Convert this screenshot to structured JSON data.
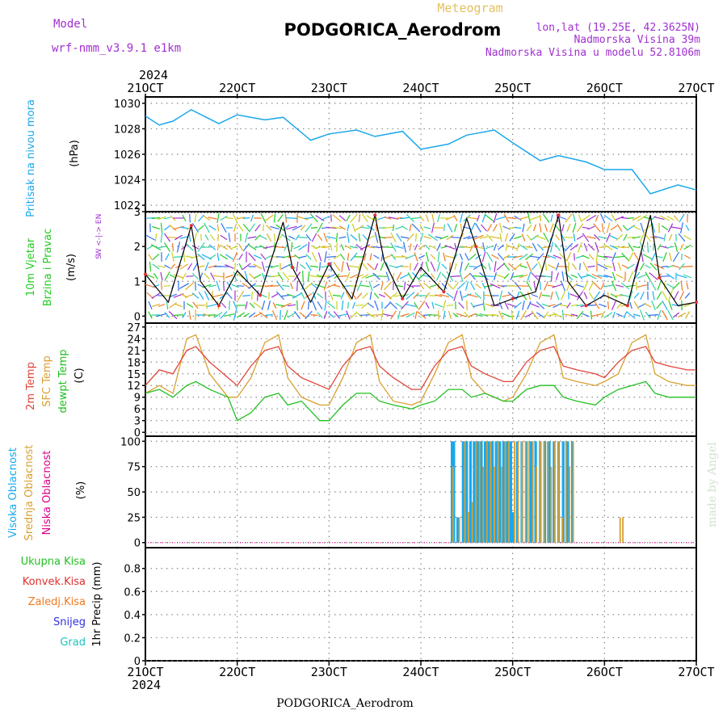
{
  "header": {
    "model_label": "Model",
    "model_name": "wrf-nmm_v3.9.1 e1km",
    "title": "PODGORICA_Aerodrom",
    "meteogram": "Meteogram",
    "lonlat": "lon,lat (19.25E, 42.3625N)",
    "elevation": "Nadmorska Visina 39m",
    "model_elevation": "Nadmorska Visina u modelu 52.8106m",
    "watermark": "made by Angel",
    "footer_title": "PODGORICA_Aerodrom"
  },
  "time_axis": {
    "year": "2024",
    "labels": [
      "21OCT",
      "22OCT",
      "23OCT",
      "24OCT",
      "25OCT",
      "26OCT",
      "27OCT"
    ]
  },
  "colors": {
    "pressure": "#1aa7ec",
    "wind_label": "#22cc22",
    "wind_dir_label": "#a030d0",
    "temp2m": "#e0443a",
    "sfc_temp": "#d9a030",
    "dewpoint": "#22c022",
    "cloud_high": "#1aa7ec",
    "cloud_mid": "#d9a030",
    "cloud_low": "#e0008a",
    "precip_total": "#22c022",
    "precip_conv": "#e03030",
    "precip_frozen": "#f07820",
    "precip_snow": "#3030e0",
    "precip_hail": "#20c0c0"
  },
  "chart_data": [
    {
      "type": "line",
      "panel": "pressure",
      "ylabel": [
        "Pritisak na nivou mora",
        "(hPa)"
      ],
      "ylim": [
        1021.5,
        1030.5
      ],
      "yticks": [
        1022,
        1024,
        1026,
        1028,
        1030
      ],
      "x": [
        0,
        0.15,
        0.3,
        0.5,
        0.8,
        1.0,
        1.3,
        1.5,
        1.8,
        2.0,
        2.3,
        2.5,
        2.8,
        3.0,
        3.3,
        3.5,
        3.8,
        4.0,
        4.3,
        4.5,
        4.8,
        5.0,
        5.3,
        5.5,
        5.8,
        6.0
      ],
      "series": [
        {
          "values": [
            1029.0,
            1028.3,
            1028.6,
            1029.5,
            1028.4,
            1029.1,
            1028.7,
            1028.9,
            1027.1,
            1027.6,
            1027.9,
            1027.4,
            1027.8,
            1026.4,
            1026.8,
            1027.5,
            1027.9,
            1026.9,
            1025.5,
            1025.9,
            1025.4,
            1024.8,
            1024.8,
            1022.9,
            1023.6,
            1023.2
          ]
        }
      ]
    },
    {
      "type": "line",
      "panel": "wind",
      "ylabel": [
        "10m Vjetar",
        "Brzina i Pravac",
        "(m/s)"
      ],
      "dir_legend": [
        "N",
        "W <-|-> E",
        "S"
      ],
      "ylim": [
        -0.2,
        3.0
      ],
      "yticks": [
        0,
        1,
        2,
        3
      ],
      "x": [
        0,
        0.25,
        0.5,
        0.6,
        0.8,
        1.0,
        1.25,
        1.5,
        1.6,
        1.8,
        2.0,
        2.25,
        2.5,
        2.6,
        2.8,
        3.0,
        3.25,
        3.5,
        3.6,
        3.8,
        4.0,
        4.25,
        4.5,
        4.6,
        4.8,
        5.0,
        5.25,
        5.5,
        5.6,
        5.8,
        6.0
      ],
      "series": [
        {
          "name": "speed",
          "values": [
            1.2,
            0.4,
            2.6,
            1.0,
            0.3,
            1.3,
            0.6,
            2.7,
            1.4,
            0.4,
            1.5,
            0.5,
            2.9,
            1.6,
            0.5,
            1.4,
            0.7,
            2.8,
            2.0,
            0.3,
            0.5,
            0.7,
            2.9,
            1.0,
            0.3,
            0.6,
            0.3,
            2.9,
            1.1,
            0.3,
            0.4
          ]
        }
      ]
    },
    {
      "type": "line",
      "panel": "temperature",
      "ylabel": [
        "2m Temp",
        "SFC Temp",
        "dewpt Temp",
        "(C)"
      ],
      "ylim": [
        -1,
        28
      ],
      "yticks": [
        0,
        3,
        6,
        9,
        12,
        15,
        18,
        21,
        24,
        27
      ],
      "x": [
        0,
        0.15,
        0.3,
        0.45,
        0.55,
        0.7,
        0.9,
        1.0,
        1.15,
        1.3,
        1.45,
        1.55,
        1.7,
        1.9,
        2.0,
        2.15,
        2.3,
        2.45,
        2.55,
        2.7,
        2.9,
        3.0,
        3.15,
        3.3,
        3.45,
        3.55,
        3.7,
        3.9,
        4.0,
        4.15,
        4.3,
        4.45,
        4.55,
        4.7,
        4.9,
        5.0,
        5.15,
        5.3,
        5.45,
        5.55,
        5.7,
        5.9,
        6.0
      ],
      "series": [
        {
          "name": "2m Temp",
          "values": [
            12,
            16,
            15,
            21,
            22,
            18,
            14,
            12,
            17,
            21,
            22,
            17,
            14,
            12,
            11,
            17,
            21,
            22,
            17,
            14,
            11,
            11,
            17,
            21,
            22,
            17,
            15,
            13,
            13,
            18,
            21,
            22,
            17,
            16,
            15,
            14,
            18,
            21,
            22,
            18,
            17,
            16,
            16
          ]
        },
        {
          "name": "SFC Temp",
          "values": [
            10,
            12,
            10,
            24,
            25,
            15,
            9,
            9,
            14,
            23,
            25,
            14,
            9,
            7,
            7,
            14,
            23,
            25,
            13,
            8,
            7,
            8,
            15,
            23,
            25,
            14,
            10,
            8,
            9,
            15,
            23,
            25,
            14,
            13,
            12,
            13,
            15,
            23,
            25,
            15,
            13,
            12,
            12
          ]
        },
        {
          "name": "dewpt Temp",
          "values": [
            10,
            11,
            9,
            12,
            13,
            11,
            9,
            3,
            5,
            9,
            10,
            7,
            8,
            3,
            3,
            7,
            10,
            10,
            8,
            7,
            6,
            7,
            8,
            11,
            11,
            9,
            10,
            8,
            8,
            11,
            12,
            12,
            9,
            8,
            7,
            9,
            11,
            12,
            13,
            10,
            9,
            9,
            9
          ]
        }
      ]
    },
    {
      "type": "bar",
      "panel": "clouds",
      "ylabel": [
        "Visoka Oblacnost",
        "Srednja Oblacnost",
        "Niska Oblacnost",
        "(%)"
      ],
      "ylim": [
        -5,
        105
      ],
      "yticks": [
        0,
        25,
        50,
        75,
        100
      ],
      "series": [
        {
          "name": "Visoka Oblacnost",
          "x": [
            3.34,
            3.36,
            3.4,
            3.46,
            3.5,
            3.54,
            3.58,
            3.62,
            3.66,
            3.7,
            3.74,
            3.78,
            3.82,
            3.86,
            3.9,
            3.94,
            3.98,
            4.0,
            4.05,
            4.1,
            4.15,
            4.2,
            4.25,
            4.3,
            4.35,
            4.4,
            4.45,
            4.5,
            4.55,
            4.6,
            4.65
          ],
          "values": [
            100,
            100,
            25,
            100,
            100,
            100,
            100,
            100,
            100,
            100,
            100,
            100,
            100,
            100,
            100,
            100,
            100,
            30,
            100,
            100,
            100,
            100,
            100,
            100,
            100,
            100,
            100,
            100,
            100,
            100,
            100
          ]
        },
        {
          "name": "Srednja Oblacnost",
          "x": [
            3.35,
            3.42,
            3.48,
            3.52,
            3.56,
            3.6,
            3.64,
            3.68,
            3.72,
            3.76,
            3.8,
            3.84,
            3.88,
            3.92,
            3.96,
            4.02,
            4.06,
            4.1,
            4.14,
            4.18,
            4.22,
            4.26,
            4.3,
            4.34,
            4.38,
            4.42,
            4.46,
            4.5,
            4.54,
            4.58,
            4.62,
            4.66,
            5.17,
            5.2
          ],
          "values": [
            75,
            25,
            100,
            30,
            40,
            100,
            100,
            75,
            100,
            100,
            75,
            100,
            75,
            100,
            100,
            100,
            100,
            100,
            100,
            100,
            100,
            75,
            100,
            100,
            100,
            75,
            100,
            100,
            25,
            100,
            75,
            100,
            25,
            25
          ]
        },
        {
          "name": "Niska Oblacnost",
          "x": [],
          "values": []
        }
      ]
    },
    {
      "type": "bar",
      "panel": "precipitation",
      "ylabel": [
        "1hr Precip (mm)"
      ],
      "legend": [
        "Ukupna Kisa",
        "Konvek.Kisa",
        "Zaledj.Kisa",
        "Snijeg",
        "Grad"
      ],
      "ylim": [
        0,
        0.98
      ],
      "yticks": [
        0,
        0.2,
        0.4,
        0.6,
        0.8
      ],
      "series": [
        {
          "name": "Ukupna Kisa",
          "values": []
        }
      ]
    }
  ]
}
